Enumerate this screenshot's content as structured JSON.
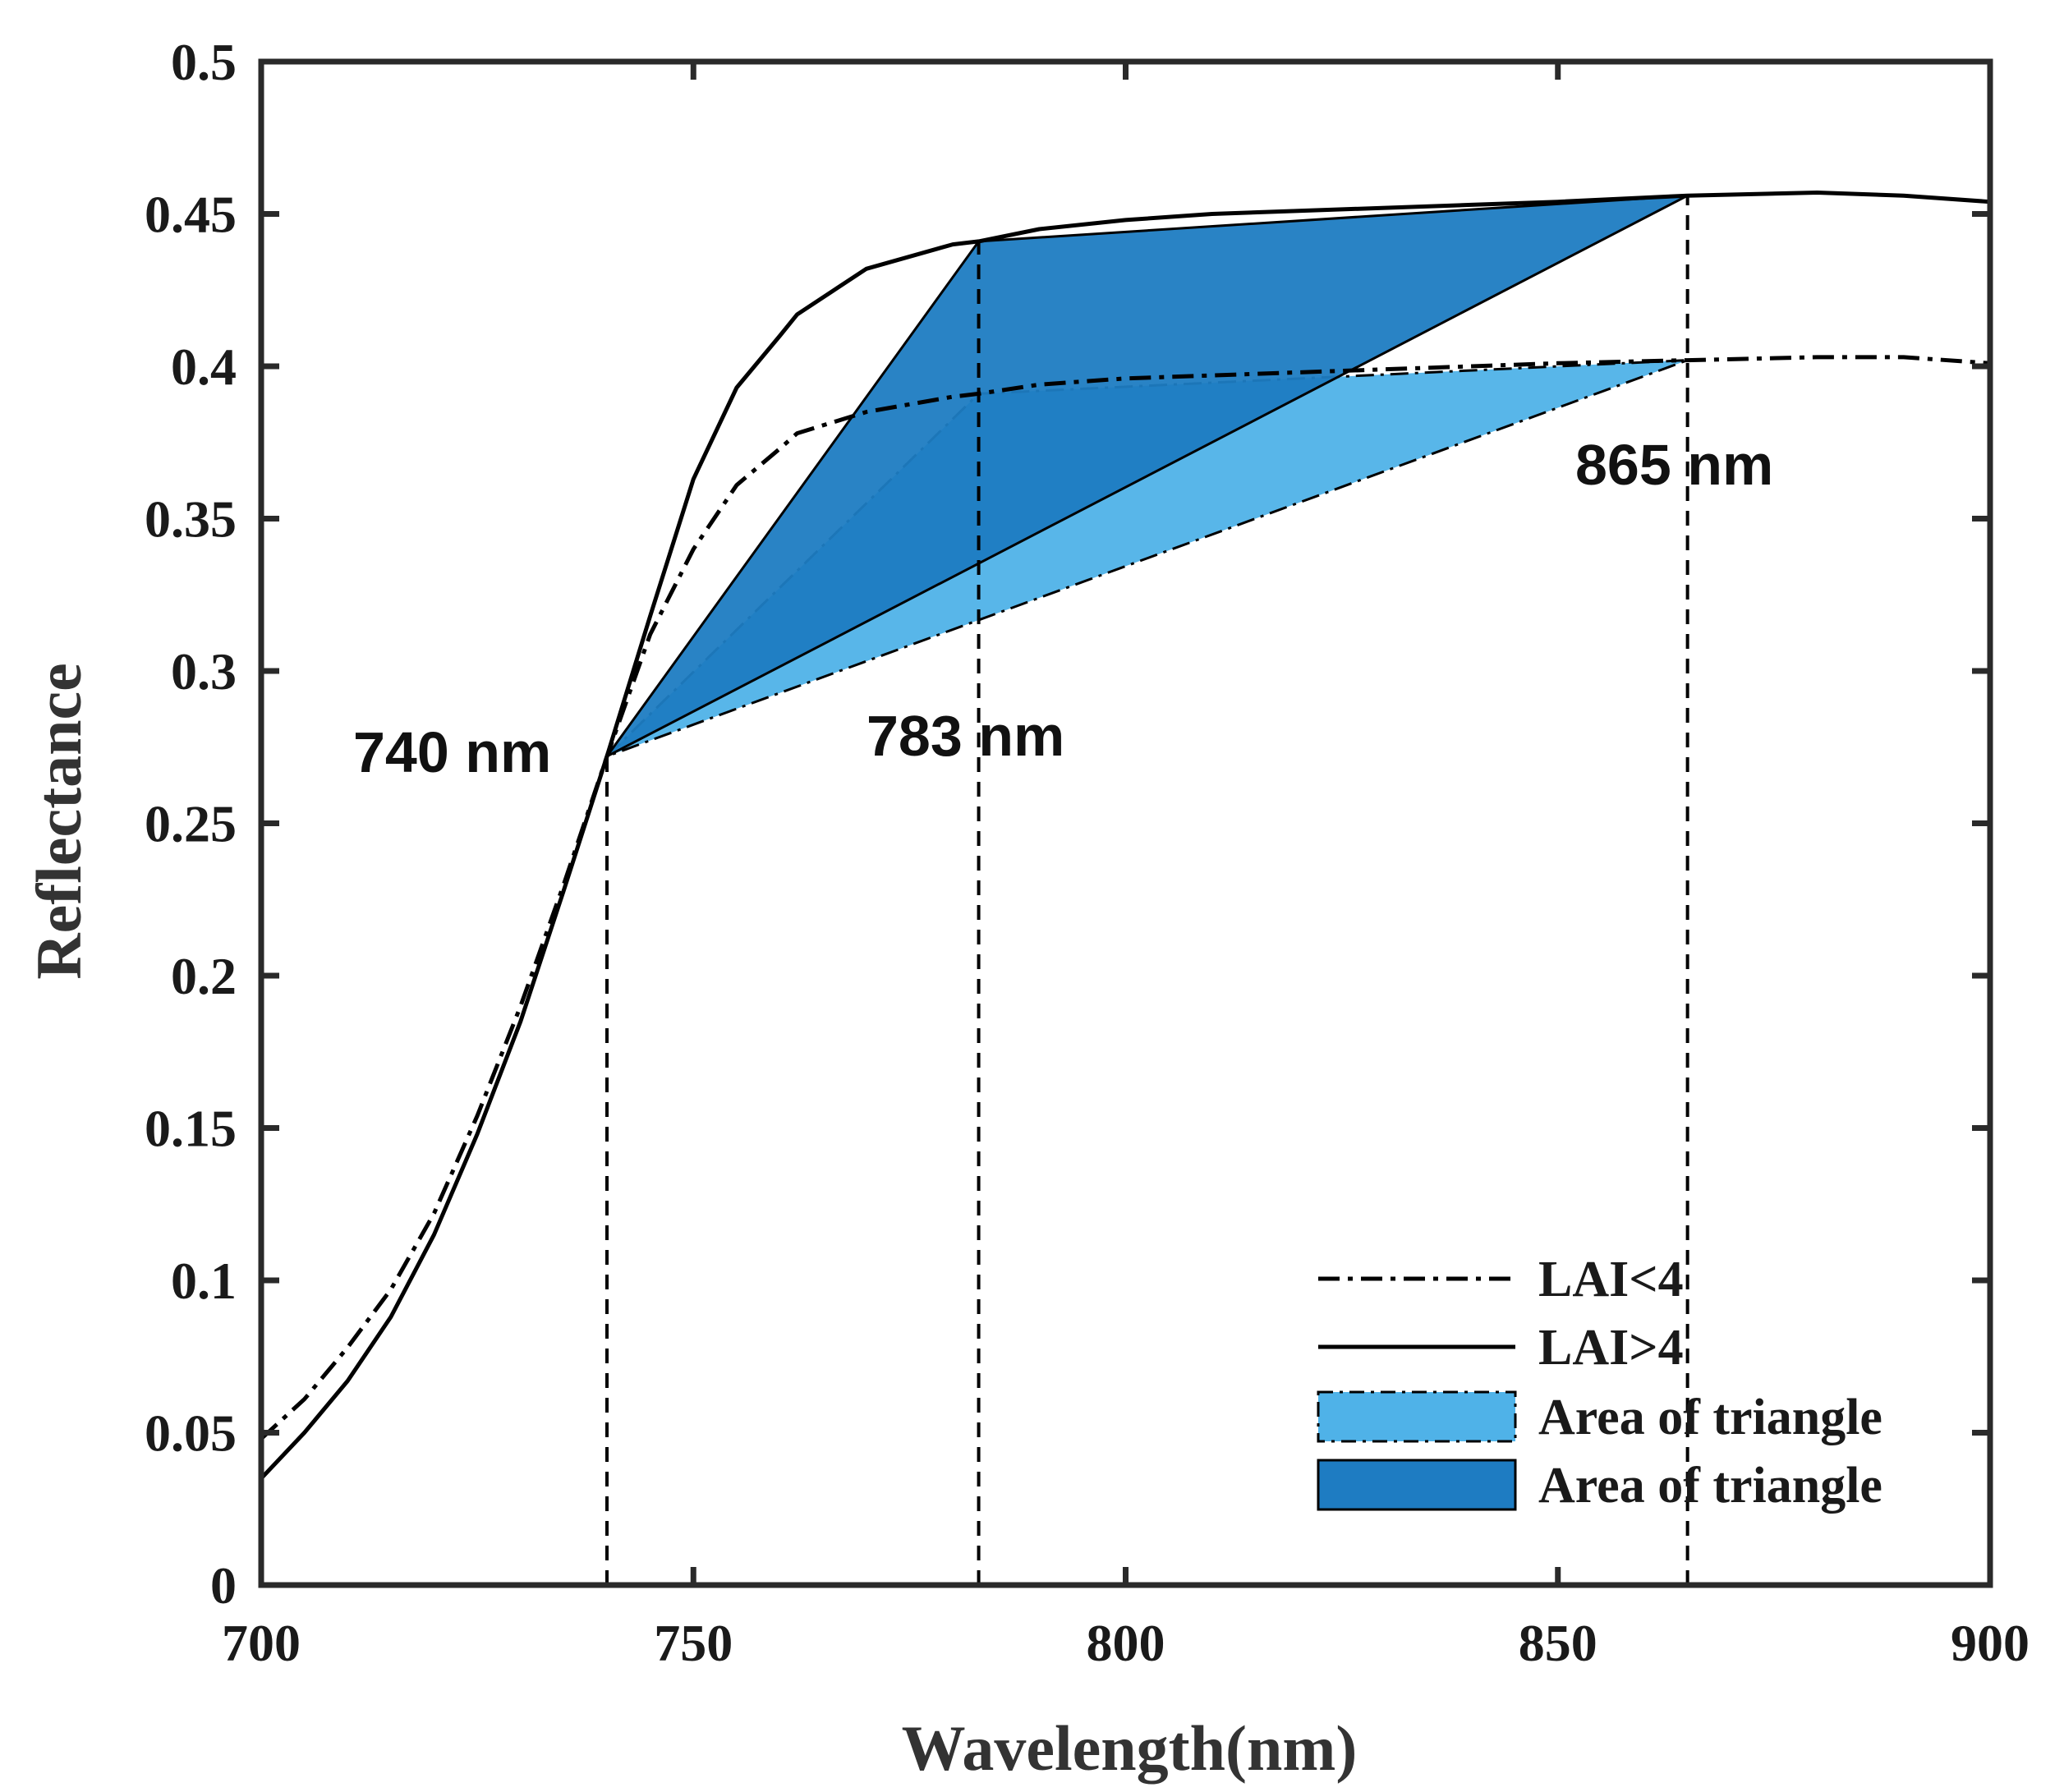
{
  "chart_data": {
    "type": "line",
    "xlabel": "Wavelength(nm)",
    "ylabel": "Reflectance",
    "xlim": [
      700,
      900
    ],
    "ylim": [
      0,
      0.5
    ],
    "xticks": [
      700,
      750,
      800,
      850,
      900
    ],
    "xtick_labels": [
      "700",
      "750",
      "800",
      "850",
      "900"
    ],
    "yticks": [
      0,
      0.05,
      0.1,
      0.15,
      0.2,
      0.25,
      0.3,
      0.35,
      0.4,
      0.45,
      0.5
    ],
    "ytick_labels": [
      "0",
      "0.05",
      "0.1",
      "0.15",
      "0.2",
      "0.25",
      "0.3",
      "0.35",
      "0.4",
      "0.45",
      "0.5"
    ],
    "series": [
      {
        "name": "LAI<4",
        "style": "dashdot",
        "color": "#000000",
        "x": [
          700,
          705,
          710,
          715,
          720,
          725,
          730,
          735,
          740,
          745,
          750,
          755,
          760,
          762,
          770,
          780,
          783,
          790,
          800,
          810,
          820,
          830,
          840,
          850,
          865,
          880,
          890,
          900
        ],
        "y": [
          0.048,
          0.061,
          0.078,
          0.097,
          0.122,
          0.154,
          0.19,
          0.23,
          0.272,
          0.312,
          0.34,
          0.361,
          0.373,
          0.378,
          0.385,
          0.39,
          0.391,
          0.394,
          0.396,
          0.397,
          0.398,
          0.399,
          0.4,
          0.401,
          0.402,
          0.403,
          0.403,
          0.401
        ]
      },
      {
        "name": "LAI>4",
        "style": "solid",
        "color": "#000000",
        "x": [
          700,
          705,
          710,
          715,
          720,
          725,
          730,
          735,
          740,
          745,
          750,
          755,
          760,
          762,
          770,
          780,
          783,
          790,
          800,
          810,
          820,
          830,
          840,
          850,
          865,
          880,
          890,
          900
        ],
        "y": [
          0.035,
          0.05,
          0.067,
          0.088,
          0.115,
          0.148,
          0.185,
          0.228,
          0.272,
          0.318,
          0.363,
          0.393,
          0.41,
          0.417,
          0.432,
          0.44,
          0.441,
          0.445,
          0.448,
          0.45,
          0.451,
          0.452,
          0.453,
          0.454,
          0.456,
          0.457,
          0.456,
          0.454
        ]
      }
    ],
    "triangles": [
      {
        "name": "Area of triangle",
        "color": "#4fb2e8",
        "points": [
          [
            740,
            0.272
          ],
          [
            783,
            0.391
          ],
          [
            865,
            0.402
          ]
        ]
      },
      {
        "name": "Area of triangle",
        "color": "#1e7cc2",
        "points": [
          [
            740,
            0.272
          ],
          [
            783,
            0.441
          ],
          [
            865,
            0.456
          ]
        ]
      }
    ],
    "vertical_markers": [
      {
        "x": 740,
        "y_top": 0.272,
        "label": "740 nm"
      },
      {
        "x": 783,
        "y_top": 0.441,
        "label": "783 nm"
      },
      {
        "x": 865,
        "y_top": 0.456,
        "label": "865 nm"
      }
    ],
    "legend": {
      "position": "bottom-right",
      "entries": [
        {
          "label": "LAI<4",
          "kind": "dashdot"
        },
        {
          "label": "LAI>4",
          "kind": "solid"
        },
        {
          "label": "Area of triangle",
          "kind": "patch-light"
        },
        {
          "label": "Area of triangle",
          "kind": "patch-dark"
        }
      ]
    }
  }
}
